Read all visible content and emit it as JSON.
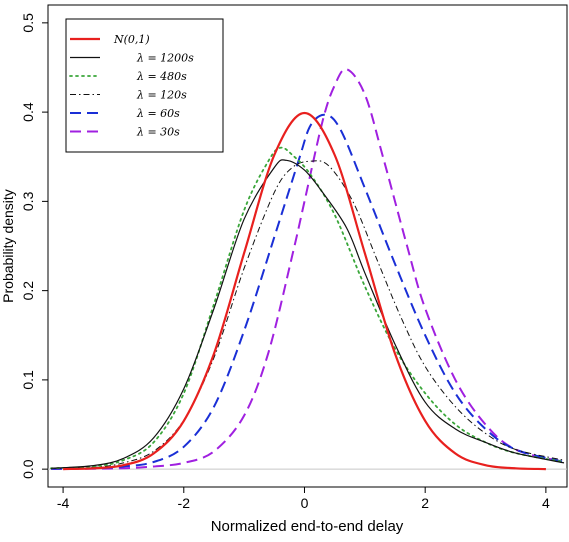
{
  "chart_data": {
    "type": "line",
    "title": "",
    "xlabel": "Normalized end-to-end delay",
    "ylabel": "Probability density",
    "xlim": [
      -4.25,
      4.35
    ],
    "ylim": [
      -0.02,
      0.52
    ],
    "x_ticks": [
      -4,
      -2,
      0,
      2,
      4
    ],
    "x_tick_labels": [
      "-4",
      "-2",
      "0",
      "2",
      "4"
    ],
    "y_ticks": [
      0.0,
      0.1,
      0.2,
      0.3,
      0.4,
      0.5
    ],
    "y_tick_labels": [
      "0.0",
      "0.1",
      "0.2",
      "0.3",
      "0.4",
      "0.5"
    ],
    "grid": false,
    "zero_line": true,
    "legend_position": "top-left",
    "series": [
      {
        "name": "N(0,1)",
        "color": "#e8201e",
        "dash": "solid",
        "width": 2.2,
        "x": [
          -4,
          -3.5,
          -3,
          -2.5,
          -2,
          -1.5,
          -1,
          -0.5,
          0,
          0.5,
          1,
          1.5,
          2,
          2.5,
          3,
          3.5,
          4
        ],
        "y": [
          0.0001,
          0.0009,
          0.0044,
          0.0175,
          0.054,
          0.1295,
          0.242,
          0.352,
          0.399,
          0.352,
          0.242,
          0.1295,
          0.054,
          0.0175,
          0.0044,
          0.0009,
          0.0001
        ]
      },
      {
        "name": "λ = 1200s",
        "color": "#111111",
        "dash": "solid",
        "width": 1.2,
        "x": [
          -4.2,
          -3.5,
          -3,
          -2.5,
          -2,
          -1.5,
          -1,
          -0.5,
          -0.3,
          0,
          0.3,
          0.7,
          1,
          1.5,
          2,
          2.5,
          3,
          3.5,
          4.3
        ],
        "y": [
          0.001,
          0.004,
          0.012,
          0.035,
          0.09,
          0.18,
          0.28,
          0.338,
          0.346,
          0.335,
          0.31,
          0.27,
          0.22,
          0.14,
          0.075,
          0.045,
          0.03,
          0.018,
          0.007
        ]
      },
      {
        "name": "λ = 480s",
        "color": "#3aa63a",
        "dash": "dotted",
        "width": 1.8,
        "x": [
          -4.2,
          -3.5,
          -3,
          -2.5,
          -2,
          -1.5,
          -1,
          -0.6,
          -0.4,
          -0.2,
          0.1,
          0.5,
          1,
          1.5,
          2,
          2.5,
          3,
          3.5,
          4.3
        ],
        "y": [
          0.001,
          0.003,
          0.01,
          0.03,
          0.085,
          0.185,
          0.29,
          0.345,
          0.36,
          0.352,
          0.33,
          0.285,
          0.205,
          0.135,
          0.085,
          0.05,
          0.03,
          0.018,
          0.008
        ]
      },
      {
        "name": "λ = 120s",
        "color": "#111111",
        "dash": "dashdot",
        "width": 1.0,
        "x": [
          -4.2,
          -3.5,
          -3,
          -2.5,
          -2,
          -1.5,
          -1,
          -0.5,
          -0.2,
          0.1,
          0.4,
          0.8,
          1.2,
          1.6,
          2,
          2.5,
          3,
          3.5,
          4.3
        ],
        "y": [
          0.001,
          0.002,
          0.007,
          0.02,
          0.055,
          0.125,
          0.225,
          0.31,
          0.338,
          0.345,
          0.34,
          0.3,
          0.235,
          0.17,
          0.115,
          0.07,
          0.04,
          0.022,
          0.01
        ]
      },
      {
        "name": "λ = 60s",
        "color": "#1a2fd6",
        "dash": "dashed",
        "width": 2.0,
        "x": [
          -4.2,
          -3.5,
          -3,
          -2.5,
          -2,
          -1.5,
          -1,
          -0.5,
          -0.1,
          0.1,
          0.35,
          0.6,
          1,
          1.5,
          2,
          2.5,
          3,
          3.5,
          4.3
        ],
        "y": [
          0.0005,
          0.001,
          0.003,
          0.008,
          0.025,
          0.07,
          0.155,
          0.26,
          0.345,
          0.385,
          0.397,
          0.38,
          0.315,
          0.23,
          0.15,
          0.085,
          0.045,
          0.022,
          0.008
        ]
      },
      {
        "name": "λ = 30s",
        "color": "#a020e0",
        "dash": "dashed",
        "width": 2.0,
        "x": [
          -4.2,
          -3.5,
          -3,
          -2.5,
          -2,
          -1.5,
          -1,
          -0.6,
          -0.2,
          0,
          0.3,
          0.5,
          0.7,
          1,
          1.3,
          1.7,
          2,
          2.5,
          3,
          3.5,
          4.3
        ],
        "y": [
          0.0002,
          0.0005,
          0.001,
          0.003,
          0.007,
          0.02,
          0.06,
          0.13,
          0.24,
          0.3,
          0.39,
          0.43,
          0.448,
          0.42,
          0.35,
          0.25,
          0.18,
          0.1,
          0.05,
          0.022,
          0.008
        ]
      }
    ]
  }
}
